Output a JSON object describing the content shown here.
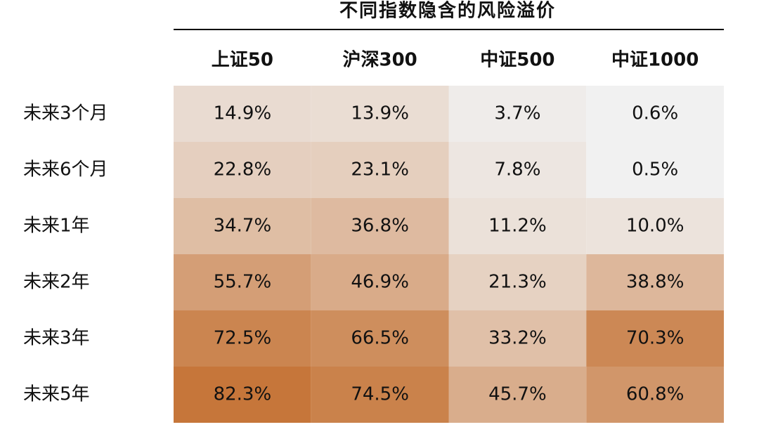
{
  "chart_data": {
    "type": "heatmap",
    "title": "不同指数隐含的风险溢价",
    "categories": [
      "上证50",
      "沪深300",
      "中证500",
      "中证1000"
    ],
    "rows": [
      "未来3个月",
      "未来6个月",
      "未来1年",
      "未来2年",
      "未来3年",
      "未来5年"
    ],
    "values": [
      [
        14.9,
        13.9,
        3.7,
        0.6
      ],
      [
        22.8,
        23.1,
        7.8,
        0.5
      ],
      [
        34.7,
        36.8,
        11.2,
        10.0
      ],
      [
        55.7,
        46.9,
        21.3,
        38.8
      ],
      [
        72.5,
        66.5,
        33.2,
        70.3
      ],
      [
        82.3,
        74.5,
        45.7,
        60.8
      ]
    ],
    "value_labels": [
      [
        "14.9%",
        "13.9%",
        "3.7%",
        "0.6%"
      ],
      [
        "22.8%",
        "23.1%",
        "7.8%",
        "0.5%"
      ],
      [
        "34.7%",
        "36.8%",
        "11.2%",
        "10.0%"
      ],
      [
        "55.7%",
        "46.9%",
        "21.3%",
        "38.8%"
      ],
      [
        "72.5%",
        "66.5%",
        "33.2%",
        "70.3%"
      ],
      [
        "82.3%",
        "74.5%",
        "45.7%",
        "60.8%"
      ]
    ],
    "colors": [
      "#f1f1f1",
      "#c6763a"
    ]
  }
}
